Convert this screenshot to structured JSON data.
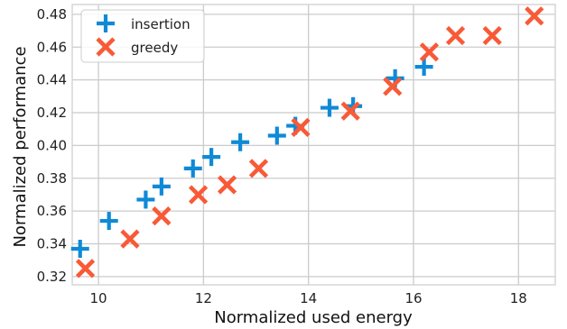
{
  "chart_data": {
    "type": "scatter",
    "title": "",
    "xlabel": "Normalized used energy",
    "ylabel": "Normalized performance",
    "xlim": [
      9.5,
      18.7
    ],
    "ylim": [
      0.315,
      0.486
    ],
    "xticks": [
      10,
      12,
      14,
      16,
      18
    ],
    "yticks": [
      0.32,
      0.34,
      0.36,
      0.38,
      0.4,
      0.42,
      0.44,
      0.46,
      0.48
    ],
    "xtick_labels": [
      "10",
      "12",
      "14",
      "16",
      "18"
    ],
    "ytick_labels": [
      "0.32",
      "0.34",
      "0.36",
      "0.38",
      "0.40",
      "0.42",
      "0.44",
      "0.46",
      "0.48"
    ],
    "grid": true,
    "legend_position": "top-left",
    "series": [
      {
        "name": "insertion",
        "marker": "plus",
        "color": "#0f8ad6",
        "points": [
          [
            9.65,
            0.337
          ],
          [
            10.2,
            0.354
          ],
          [
            10.9,
            0.367
          ],
          [
            11.2,
            0.375
          ],
          [
            11.8,
            0.386
          ],
          [
            12.15,
            0.393
          ],
          [
            12.7,
            0.402
          ],
          [
            13.4,
            0.406
          ],
          [
            13.75,
            0.412
          ],
          [
            14.4,
            0.423
          ],
          [
            14.85,
            0.424
          ],
          [
            15.65,
            0.441
          ],
          [
            16.2,
            0.448
          ]
        ]
      },
      {
        "name": "greedy",
        "marker": "x",
        "color": "#f85a37",
        "points": [
          [
            9.75,
            0.325
          ],
          [
            10.6,
            0.343
          ],
          [
            11.2,
            0.357
          ],
          [
            11.9,
            0.37
          ],
          [
            12.45,
            0.376
          ],
          [
            13.05,
            0.386
          ],
          [
            13.85,
            0.411
          ],
          [
            14.8,
            0.421
          ],
          [
            15.6,
            0.436
          ],
          [
            16.3,
            0.457
          ],
          [
            16.8,
            0.467
          ],
          [
            17.5,
            0.467
          ],
          [
            18.3,
            0.479
          ]
        ]
      }
    ]
  }
}
